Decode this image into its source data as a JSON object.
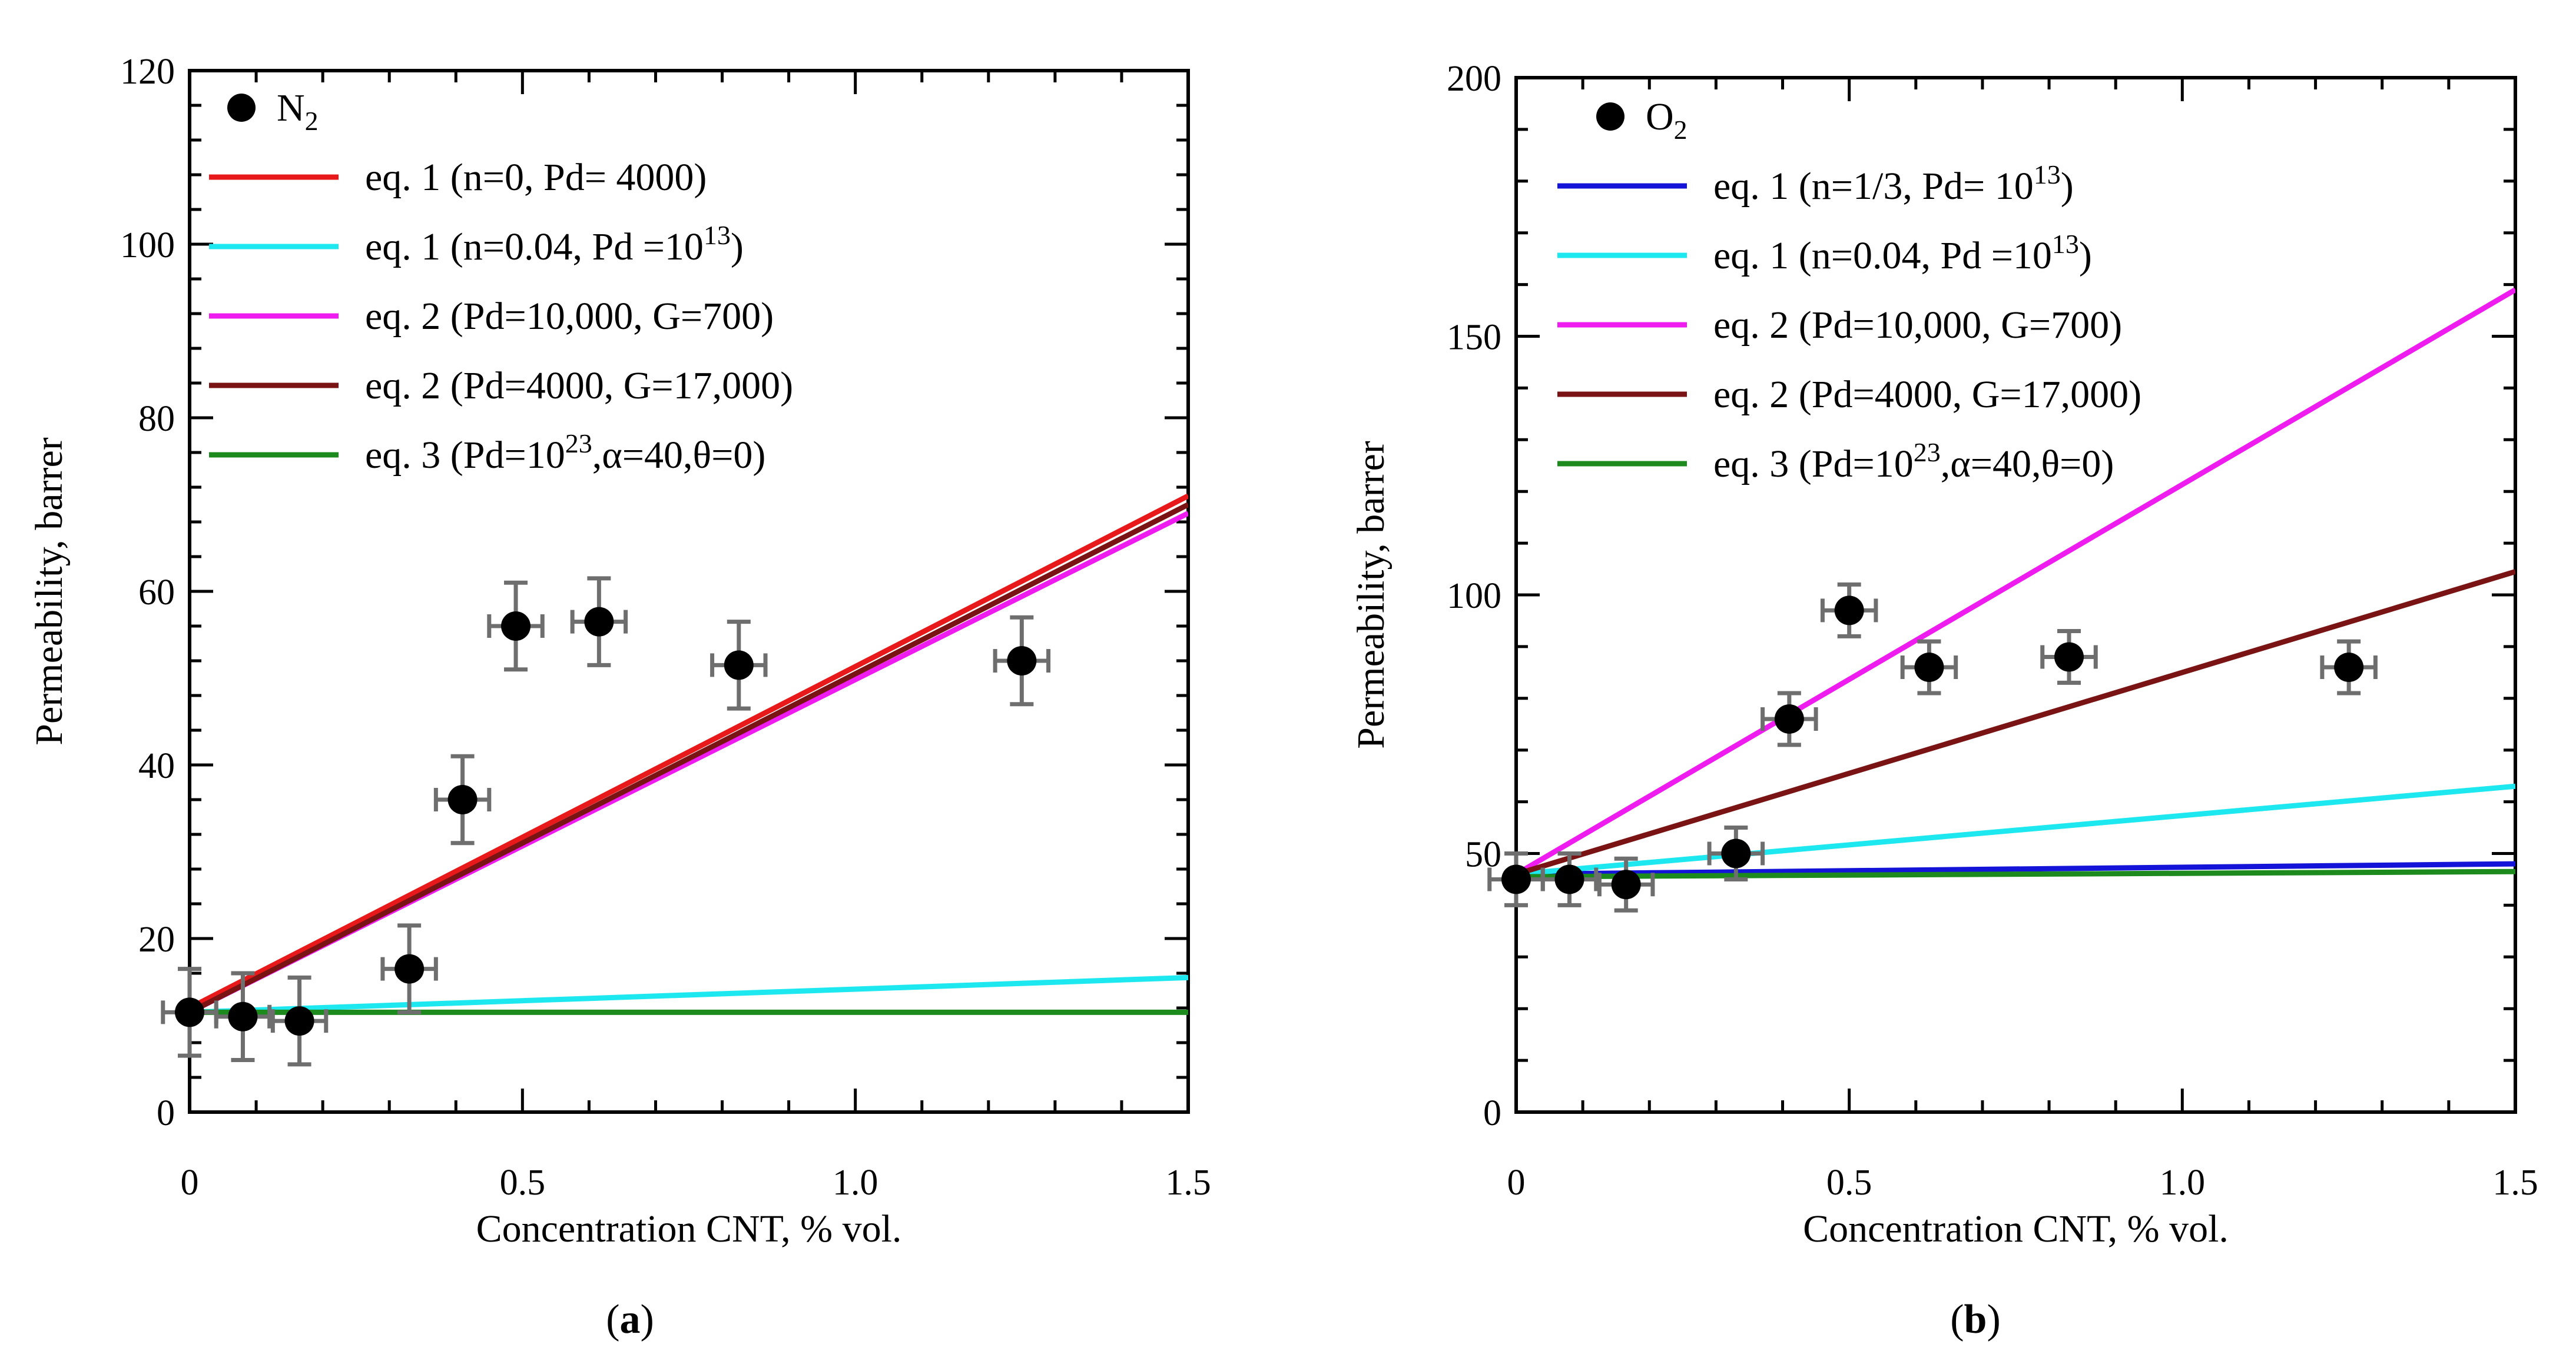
{
  "chart_data": [
    {
      "type": "scatter",
      "panel_label": "a",
      "xlabel": "Concentration CNT, % vol.",
      "ylabel": "Permeability, barrer",
      "xlim": [
        0,
        1.5
      ],
      "ylim": [
        0,
        120
      ],
      "xticks": [
        0,
        0.5,
        1.0,
        1.5
      ],
      "xtick_labels": [
        "0",
        "0.5",
        "1.0",
        "1.5"
      ],
      "yticks": [
        0,
        20,
        40,
        60,
        80,
        100,
        120
      ],
      "ytick_labels": [
        "0",
        "20",
        "40",
        "60",
        "80",
        "100",
        "120"
      ],
      "points": {
        "name": "N2",
        "label_main": "N",
        "label_sub": "2",
        "x": [
          0,
          0.08,
          0.165,
          0.33,
          0.41,
          0.49,
          0.615,
          0.825,
          1.25
        ],
        "y": [
          11.5,
          11,
          10.5,
          16.5,
          36,
          56,
          56.5,
          51.5,
          52
        ],
        "yerr": [
          5,
          5,
          5,
          5,
          5,
          5,
          5,
          5,
          5
        ],
        "xerr": [
          0.04,
          0.04,
          0.04,
          0.04,
          0.04,
          0.04,
          0.04,
          0.04,
          0.04
        ]
      },
      "series": [
        {
          "name": "eq. 1 (n=0, Pd= 4000)",
          "legend_parts": [
            {
              "t": "eq. 1 (n=0, Pd= 4000)"
            }
          ],
          "color": "#e8191a",
          "x": [
            0,
            1.5
          ],
          "y": [
            12,
            71
          ]
        },
        {
          "name": "eq. 1 (n=0.04, Pd =10^13)",
          "legend_parts": [
            {
              "t": "eq. 1 (n=0.04, Pd =10"
            },
            {
              "t": "13",
              "sup": true
            },
            {
              "t": ")"
            }
          ],
          "color": "#1ee8ef",
          "x": [
            0,
            1.5
          ],
          "y": [
            11.5,
            15.5
          ]
        },
        {
          "name": "eq. 2 (Pd=10,000, G=700)",
          "legend_parts": [
            {
              "t": "eq. 2 (Pd=10,000, G=700)"
            }
          ],
          "color": "#ee1cee",
          "x": [
            0,
            1.5
          ],
          "y": [
            11.5,
            69
          ]
        },
        {
          "name": "eq. 2 (Pd=4000, G=17,000)",
          "legend_parts": [
            {
              "t": "eq. 2 (Pd=4000, G=17,000)"
            }
          ],
          "color": "#7a1414",
          "x": [
            0,
            1.5
          ],
          "y": [
            11.5,
            70
          ]
        },
        {
          "name": "eq. 3 (Pd=10^23, α=40, θ=0)",
          "legend_parts": [
            {
              "t": "eq. 3 (Pd=10"
            },
            {
              "t": "23",
              "sup": true
            },
            {
              "t": ",α=40,θ=0)"
            }
          ],
          "color": "#1d8a1d",
          "x": [
            0,
            1.5
          ],
          "y": [
            11.5,
            11.5
          ]
        }
      ]
    },
    {
      "type": "scatter",
      "panel_label": "b",
      "xlabel": "Concentration CNT, % vol.",
      "ylabel": "Permeability, barrer",
      "xlim": [
        0,
        1.5
      ],
      "ylim": [
        0,
        200
      ],
      "xticks": [
        0,
        0.5,
        1.0,
        1.5
      ],
      "xtick_labels": [
        "0",
        "0.5",
        "1.0",
        "1.5"
      ],
      "yticks": [
        0,
        50,
        100,
        150,
        200
      ],
      "ytick_labels": [
        "0",
        "50",
        "100",
        "150",
        "200"
      ],
      "points": {
        "name": "O2",
        "label_main": "O",
        "label_sub": "2",
        "x": [
          0,
          0.08,
          0.165,
          0.33,
          0.41,
          0.5,
          0.62,
          0.83,
          1.25
        ],
        "y": [
          45,
          45,
          44,
          50,
          76,
          97,
          86,
          88,
          86
        ],
        "yerr": [
          5,
          5,
          5,
          5,
          5,
          5,
          5,
          5,
          5
        ],
        "xerr": [
          0.04,
          0.04,
          0.04,
          0.04,
          0.04,
          0.04,
          0.04,
          0.04,
          0.04
        ]
      },
      "series": [
        {
          "name": "eq. 1 (n=1/3, Pd= 10^13)",
          "legend_parts": [
            {
              "t": "eq. 1 (n=1/3, Pd= 10"
            },
            {
              "t": "13",
              "sup": true
            },
            {
              "t": ")"
            }
          ],
          "color": "#1414d8",
          "x": [
            0,
            1.5
          ],
          "y": [
            46,
            48
          ]
        },
        {
          "name": "eq. 1 (n=0.04, Pd =10^13)",
          "legend_parts": [
            {
              "t": "eq. 1 (n=0.04, Pd =10"
            },
            {
              "t": "13",
              "sup": true
            },
            {
              "t": ")"
            }
          ],
          "color": "#1ee8ef",
          "x": [
            0,
            1.5
          ],
          "y": [
            46,
            63
          ]
        },
        {
          "name": "eq. 2 (Pd=10,000, G=700)",
          "legend_parts": [
            {
              "t": "eq. 2 (Pd=10,000, G=700)"
            }
          ],
          "color": "#ee1cee",
          "x": [
            0,
            1.5
          ],
          "y": [
            46,
            159
          ]
        },
        {
          "name": "eq. 2 (Pd=4000, G=17,000)",
          "legend_parts": [
            {
              "t": "eq. 2 (Pd=4000, G=17,000)"
            }
          ],
          "color": "#7a1414",
          "x": [
            0,
            1.5
          ],
          "y": [
            46,
            104.5
          ]
        },
        {
          "name": "eq. 3 (Pd=10^23, α=40, θ=0)",
          "legend_parts": [
            {
              "t": "eq. 3 (Pd=10"
            },
            {
              "t": "23",
              "sup": true
            },
            {
              "t": ",α=40,θ=0)"
            }
          ],
          "color": "#1d8a1d",
          "x": [
            0,
            1.5
          ],
          "y": [
            45.5,
            46.5
          ]
        }
      ]
    }
  ]
}
